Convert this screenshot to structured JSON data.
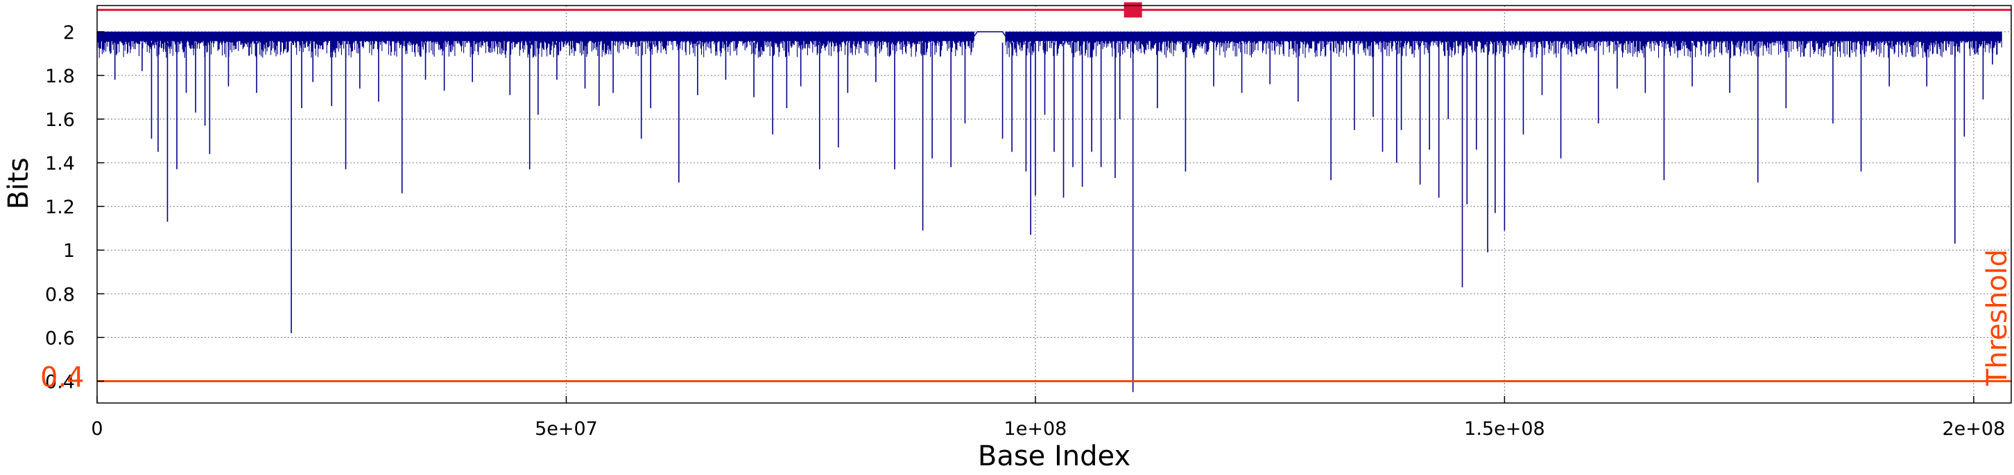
{
  "chart_data": {
    "type": "line",
    "title": "",
    "xlabel": "Base Index",
    "ylabel": "Bits",
    "xlim": [
      0,
      204000000
    ],
    "ylim": [
      0.3,
      2.12
    ],
    "x_ticks": [
      {
        "value": 0,
        "label": "0"
      },
      {
        "value": 50000000,
        "label": "5e+07"
      },
      {
        "value": 100000000,
        "label": "1e+08"
      },
      {
        "value": 150000000,
        "label": "1.5e+08"
      },
      {
        "value": 200000000,
        "label": "2e+08"
      }
    ],
    "y_ticks": [
      {
        "value": 0.4,
        "label": "0.4"
      },
      {
        "value": 0.6,
        "label": "0.6"
      },
      {
        "value": 0.8,
        "label": "0.8"
      },
      {
        "value": 1.0,
        "label": "1"
      },
      {
        "value": 1.2,
        "label": "1.2"
      },
      {
        "value": 1.4,
        "label": "1.4"
      },
      {
        "value": 1.6,
        "label": "1.6"
      },
      {
        "value": 1.8,
        "label": "1.8"
      },
      {
        "value": 2.0,
        "label": "2"
      }
    ],
    "grid": true,
    "series": [
      {
        "color": "#00008b",
        "baseline_band": [
          1.88,
          2.0
        ],
        "gap": [
          93500000,
          96800000
        ],
        "dips": [
          [
            1900000,
            1.78
          ],
          [
            4800000,
            1.82
          ],
          [
            5800000,
            1.51
          ],
          [
            6500000,
            1.45
          ],
          [
            7500000,
            1.13
          ],
          [
            8500000,
            1.37
          ],
          [
            9500000,
            1.72
          ],
          [
            10500000,
            1.63
          ],
          [
            11500000,
            1.57
          ],
          [
            12000000,
            1.44
          ],
          [
            14000000,
            1.75
          ],
          [
            17000000,
            1.72
          ],
          [
            20700000,
            0.62
          ],
          [
            21800000,
            1.65
          ],
          [
            23000000,
            1.77
          ],
          [
            25000000,
            1.66
          ],
          [
            26500000,
            1.37
          ],
          [
            28000000,
            1.74
          ],
          [
            30000000,
            1.68
          ],
          [
            32500000,
            1.26
          ],
          [
            35000000,
            1.78
          ],
          [
            37000000,
            1.73
          ],
          [
            40000000,
            1.77
          ],
          [
            44000000,
            1.71
          ],
          [
            46100000,
            1.37
          ],
          [
            47000000,
            1.62
          ],
          [
            49000000,
            1.78
          ],
          [
            52000000,
            1.74
          ],
          [
            53500000,
            1.66
          ],
          [
            55000000,
            1.72
          ],
          [
            58000000,
            1.51
          ],
          [
            59000000,
            1.65
          ],
          [
            62000000,
            1.31
          ],
          [
            64000000,
            1.71
          ],
          [
            67000000,
            1.78
          ],
          [
            70000000,
            1.7
          ],
          [
            72000000,
            1.53
          ],
          [
            73500000,
            1.65
          ],
          [
            75000000,
            1.75
          ],
          [
            77000000,
            1.37
          ],
          [
            79000000,
            1.47
          ],
          [
            80000000,
            1.72
          ],
          [
            83000000,
            1.77
          ],
          [
            85000000,
            1.37
          ],
          [
            88000000,
            1.09
          ],
          [
            89000000,
            1.42
          ],
          [
            91000000,
            1.38
          ],
          [
            92500000,
            1.58
          ],
          [
            96500000,
            1.51
          ],
          [
            97500000,
            1.45
          ],
          [
            99000000,
            1.36
          ],
          [
            99500000,
            1.07
          ],
          [
            100000000,
            1.25
          ],
          [
            101000000,
            1.62
          ],
          [
            102000000,
            1.45
          ],
          [
            103000000,
            1.24
          ],
          [
            104000000,
            1.38
          ],
          [
            105000000,
            1.29
          ],
          [
            106000000,
            1.45
          ],
          [
            107000000,
            1.38
          ],
          [
            108500000,
            1.33
          ],
          [
            109000000,
            1.6
          ],
          [
            110400000,
            0.35
          ],
          [
            113000000,
            1.65
          ],
          [
            116000000,
            1.36
          ],
          [
            119000000,
            1.75
          ],
          [
            122000000,
            1.72
          ],
          [
            125000000,
            1.76
          ],
          [
            128000000,
            1.68
          ],
          [
            131500000,
            1.32
          ],
          [
            134000000,
            1.55
          ],
          [
            136000000,
            1.61
          ],
          [
            137000000,
            1.45
          ],
          [
            138500000,
            1.4
          ],
          [
            139000000,
            1.55
          ],
          [
            141000000,
            1.3
          ],
          [
            142000000,
            1.46
          ],
          [
            143000000,
            1.24
          ],
          [
            144000000,
            1.6
          ],
          [
            145500000,
            0.83
          ],
          [
            146000000,
            1.21
          ],
          [
            147000000,
            1.46
          ],
          [
            148200000,
            0.99
          ],
          [
            149000000,
            1.17
          ],
          [
            150000000,
            1.09
          ],
          [
            152000000,
            1.53
          ],
          [
            154000000,
            1.71
          ],
          [
            156000000,
            1.42
          ],
          [
            160000000,
            1.58
          ],
          [
            162000000,
            1.74
          ],
          [
            165000000,
            1.72
          ],
          [
            167000000,
            1.32
          ],
          [
            170000000,
            1.75
          ],
          [
            174000000,
            1.72
          ],
          [
            177000000,
            1.31
          ],
          [
            180000000,
            1.65
          ],
          [
            185000000,
            1.58
          ],
          [
            188000000,
            1.36
          ],
          [
            191000000,
            1.75
          ],
          [
            195000000,
            1.75
          ],
          [
            198000000,
            1.03
          ],
          [
            199000000,
            1.52
          ],
          [
            201000000,
            1.69
          ],
          [
            202000000,
            1.85
          ]
        ]
      }
    ],
    "reference_lines": [
      {
        "orientation": "horizontal",
        "y": 0.4,
        "color": "#ff4500",
        "label": "Threshold",
        "value_label": "0.4"
      },
      {
        "orientation": "horizontal",
        "y": 2.1,
        "color": "#dc143c",
        "marker_x": 110400000
      }
    ]
  }
}
